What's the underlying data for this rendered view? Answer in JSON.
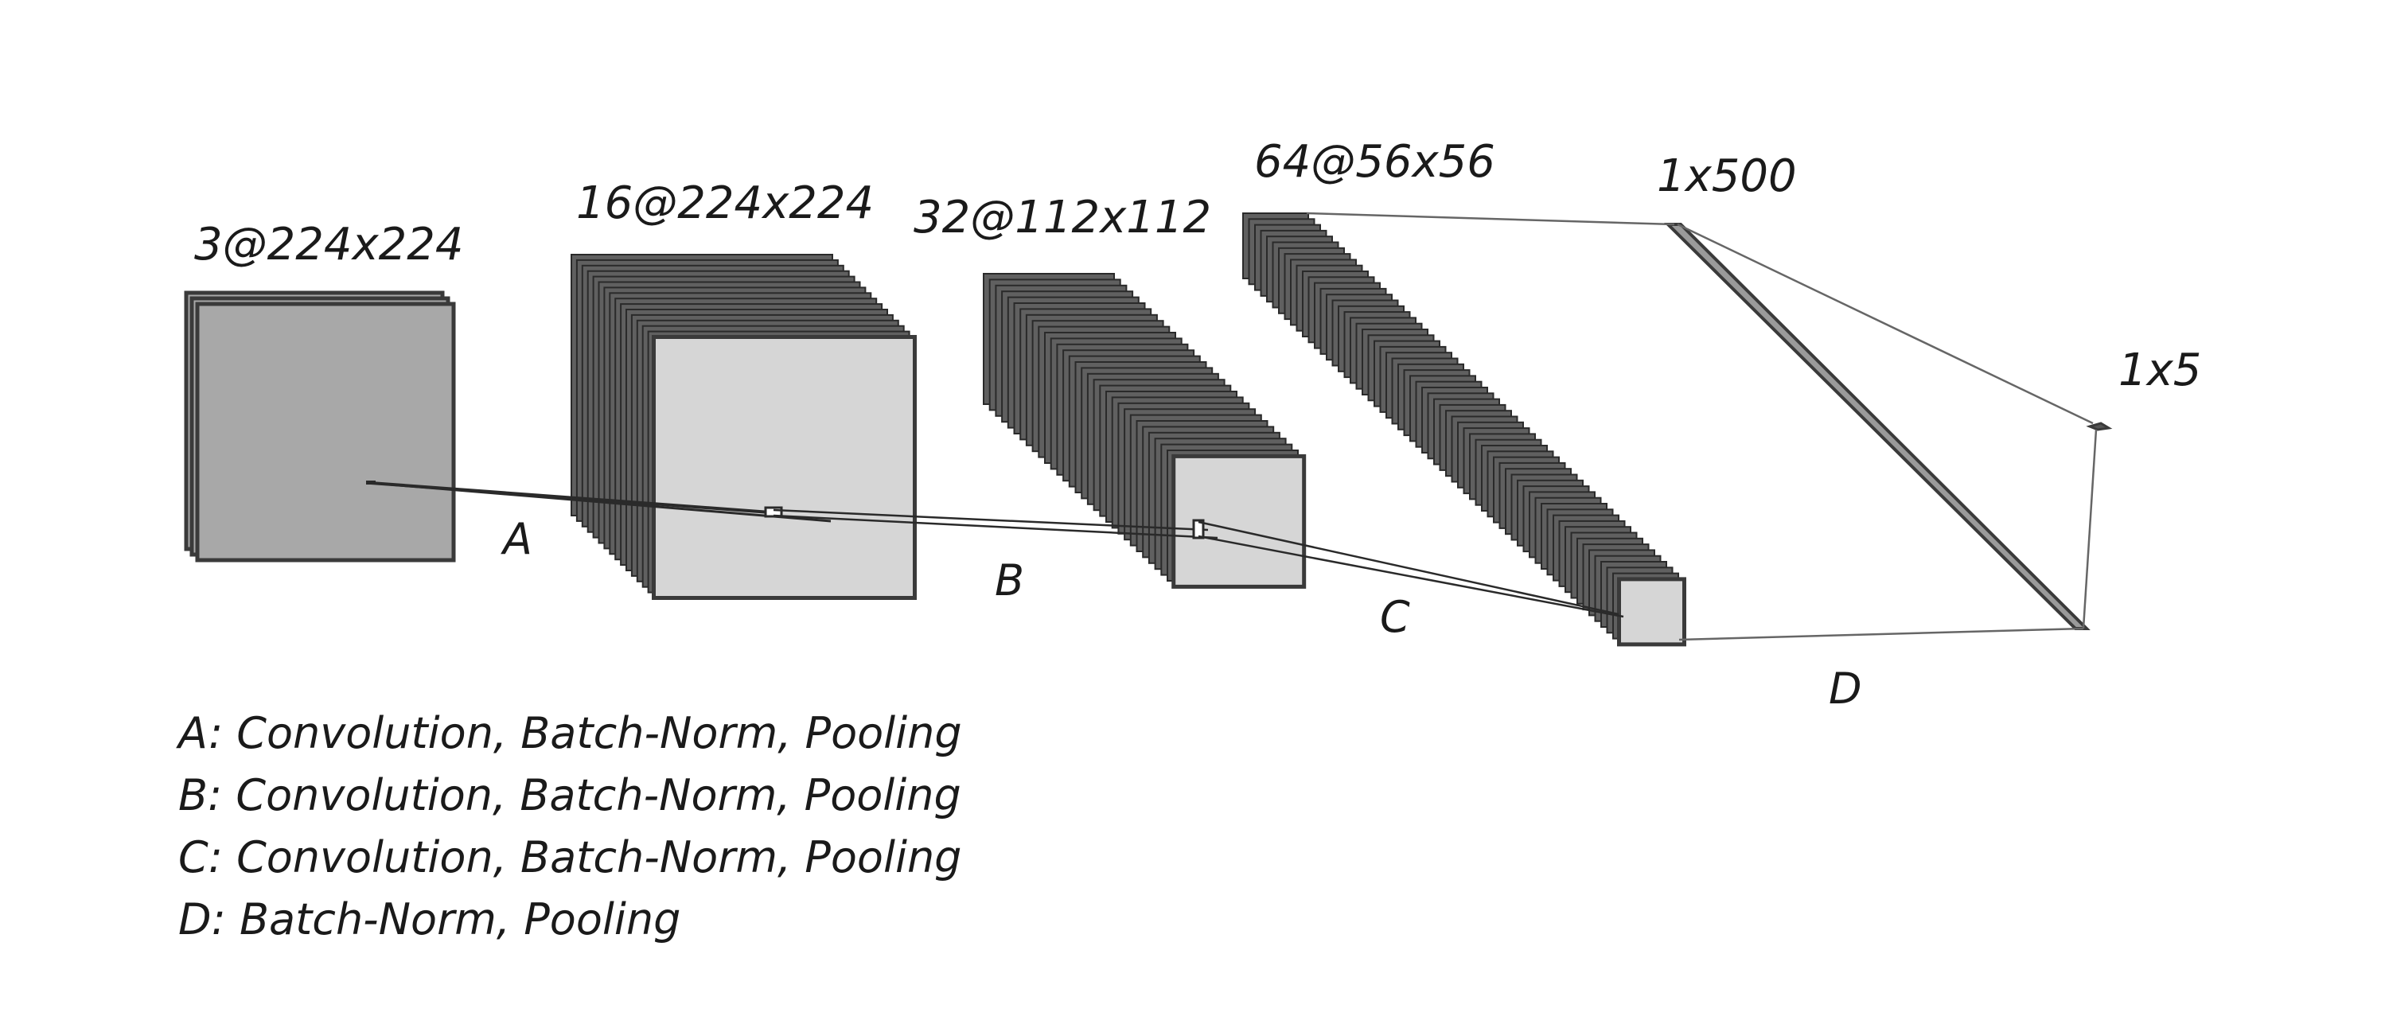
{
  "diagram": {
    "layers": [
      {
        "id": "input",
        "label": "3@224x224"
      },
      {
        "id": "conv1",
        "label": "16@224x224"
      },
      {
        "id": "conv2",
        "label": "32@112x112"
      },
      {
        "id": "conv3",
        "label": "64@56x56"
      },
      {
        "id": "fc1",
        "label": "1x500"
      },
      {
        "id": "out",
        "label": "1x5"
      }
    ],
    "transitions": [
      "A",
      "B",
      "C",
      "D"
    ],
    "legend": [
      "A: Convolution, Batch-Norm, Pooling",
      "B: Convolution, Batch-Norm, Pooling",
      "C: Convolution, Batch-Norm, Pooling",
      "D: Batch-Norm, Pooling"
    ],
    "colors": {
      "input_fill": "#a8a8a8",
      "map_fill": "#d6d6d6",
      "stack_fill": "#606060",
      "stroke": "#3a3a3a",
      "line": "#2a2a2a"
    }
  }
}
